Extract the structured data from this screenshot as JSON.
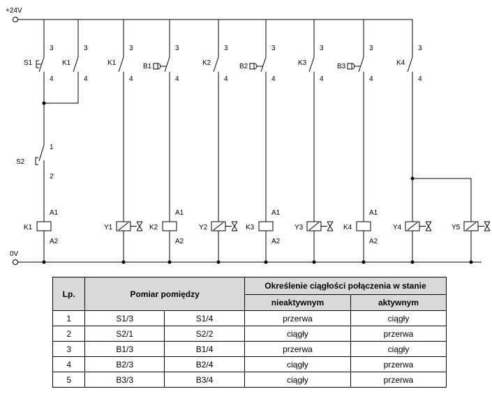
{
  "schematic": {
    "supply_positive": "+24V",
    "supply_ground": "0V",
    "contacts": [
      {
        "id": "S1",
        "type": "push",
        "pin_top": "3",
        "pin_bottom": "4"
      },
      {
        "id": "K1",
        "type": "relay",
        "pin_top": "3",
        "pin_bottom": "4"
      },
      {
        "id": "K1",
        "type": "relay",
        "pin_top": "3",
        "pin_bottom": "4"
      },
      {
        "id": "B1",
        "type": "sensor",
        "pin_top": "3",
        "pin_bottom": "4"
      },
      {
        "id": "K2",
        "type": "relay",
        "pin_top": "3",
        "pin_bottom": "4"
      },
      {
        "id": "B2",
        "type": "sensor",
        "pin_top": "3",
        "pin_bottom": "4"
      },
      {
        "id": "K3",
        "type": "relay",
        "pin_top": "3",
        "pin_bottom": "4"
      },
      {
        "id": "B3",
        "type": "sensor",
        "pin_top": "3",
        "pin_bottom": "4"
      },
      {
        "id": "K4",
        "type": "relay",
        "pin_top": "3",
        "pin_bottom": "4"
      }
    ],
    "stop_button": {
      "id": "S2",
      "pin_top": "1",
      "pin_bottom": "2"
    },
    "relay_coils": [
      {
        "id": "K1",
        "pin_top": "A1",
        "pin_bottom": "A2"
      },
      {
        "id": "K2",
        "pin_top": "A1",
        "pin_bottom": "A2"
      },
      {
        "id": "K3",
        "pin_top": "A1",
        "pin_bottom": "A2"
      },
      {
        "id": "K4",
        "pin_top": "A1",
        "pin_bottom": "A2"
      }
    ],
    "valve_coils": [
      "Y1",
      "Y2",
      "Y3",
      "Y4",
      "Y5"
    ]
  },
  "table": {
    "header_lp": "Lp.",
    "header_measure": "Pomiar pomiędzy",
    "header_state": "Określenie ciągłości połączenia w stanie",
    "header_inactive": "nieaktywnym",
    "header_active": "aktywnym",
    "rows": [
      {
        "lp": "1",
        "from": "S1/3",
        "to": "S1/4",
        "inactive": "przerwa",
        "active": "ciągły"
      },
      {
        "lp": "2",
        "from": "S2/1",
        "to": "S2/2",
        "inactive": "ciągły",
        "active": "przerwa"
      },
      {
        "lp": "3",
        "from": "B1/3",
        "to": "B1/4",
        "inactive": "przerwa",
        "active": "ciągły"
      },
      {
        "lp": "4",
        "from": "B2/3",
        "to": "B2/4",
        "inactive": "ciągły",
        "active": "przerwa"
      },
      {
        "lp": "5",
        "from": "B3/3",
        "to": "B3/4",
        "inactive": "ciągły",
        "active": "przerwa"
      }
    ]
  }
}
